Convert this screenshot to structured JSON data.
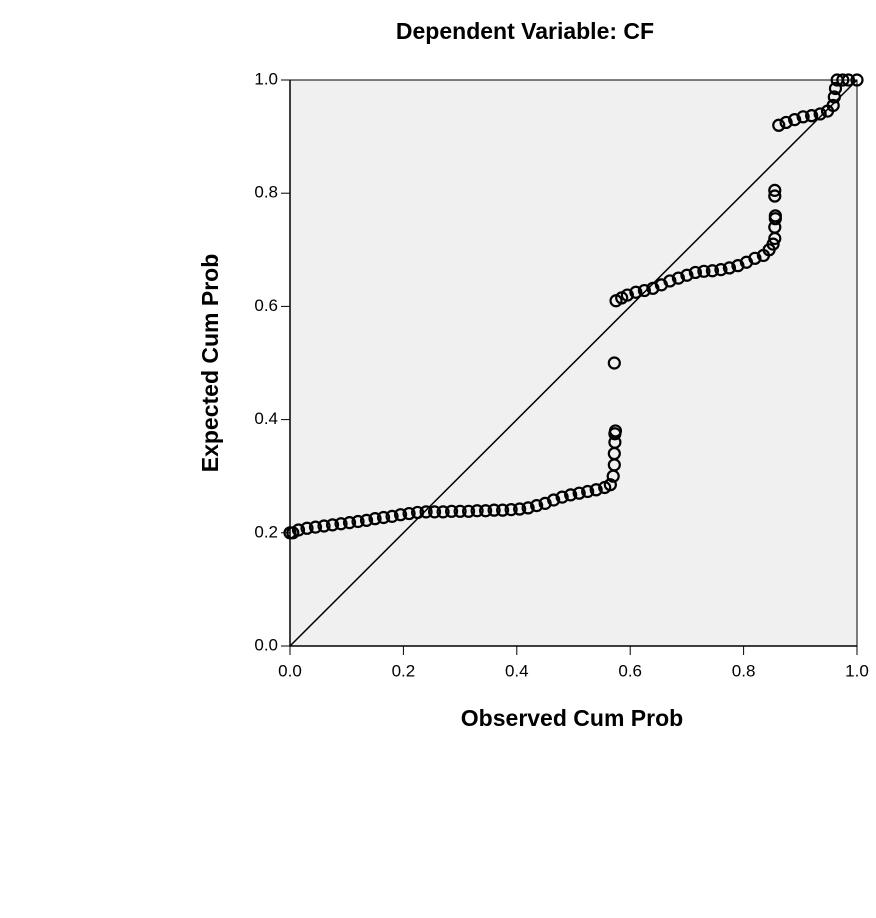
{
  "chart_data": {
    "type": "scatter",
    "title": "Dependent Variable: CF",
    "x_label": "Observed Cum Prob",
    "y_label": "Expected Cum Prob",
    "xlim": [
      0,
      1
    ],
    "ylim": [
      0,
      1
    ],
    "xticks": [
      {
        "value": 0,
        "label": "0.0"
      },
      0.2,
      0.4,
      0.6,
      0.8,
      {
        "value": 1,
        "label": "1.0"
      }
    ],
    "yticks": [
      {
        "value": 0,
        "label": "0.0"
      },
      0.2,
      0.4,
      0.6,
      0.8,
      {
        "value": 1,
        "label": "1.0"
      }
    ],
    "color": "#000000",
    "background": "#f0f0f0",
    "reference_line": true,
    "x": [
      0.0,
      0.005,
      0.015,
      0.03,
      0.045,
      0.06,
      0.075,
      0.09,
      0.105,
      0.12,
      0.135,
      0.15,
      0.165,
      0.18,
      0.195,
      0.21,
      0.225,
      0.24,
      0.255,
      0.27,
      0.285,
      0.3,
      0.315,
      0.33,
      0.345,
      0.36,
      0.375,
      0.39,
      0.405,
      0.42,
      0.435,
      0.45,
      0.465,
      0.48,
      0.495,
      0.51,
      0.525,
      0.54,
      0.555,
      0.565,
      0.57,
      0.572,
      0.572,
      0.573,
      0.573,
      0.574,
      0.572,
      0.575,
      0.585,
      0.595,
      0.61,
      0.625,
      0.64,
      0.655,
      0.67,
      0.685,
      0.7,
      0.715,
      0.73,
      0.745,
      0.76,
      0.775,
      0.79,
      0.805,
      0.82,
      0.835,
      0.845,
      0.852,
      0.855,
      0.855,
      0.856,
      0.856,
      0.855,
      0.855,
      0.862,
      0.875,
      0.89,
      0.905,
      0.92,
      0.935,
      0.948,
      0.958,
      0.96,
      0.962,
      0.965,
      0.975,
      0.985,
      1.0
    ],
    "values": [
      0.2,
      0.2,
      0.205,
      0.208,
      0.21,
      0.212,
      0.214,
      0.216,
      0.218,
      0.22,
      0.222,
      0.225,
      0.227,
      0.229,
      0.232,
      0.234,
      0.236,
      0.237,
      0.237,
      0.237,
      0.238,
      0.238,
      0.238,
      0.239,
      0.239,
      0.24,
      0.24,
      0.241,
      0.242,
      0.244,
      0.248,
      0.252,
      0.258,
      0.263,
      0.267,
      0.27,
      0.273,
      0.276,
      0.28,
      0.285,
      0.3,
      0.32,
      0.34,
      0.36,
      0.375,
      0.38,
      0.5,
      0.61,
      0.615,
      0.62,
      0.625,
      0.628,
      0.632,
      0.638,
      0.645,
      0.65,
      0.655,
      0.66,
      0.662,
      0.663,
      0.665,
      0.668,
      0.672,
      0.678,
      0.685,
      0.69,
      0.7,
      0.71,
      0.72,
      0.74,
      0.755,
      0.76,
      0.795,
      0.805,
      0.92,
      0.925,
      0.93,
      0.935,
      0.937,
      0.94,
      0.945,
      0.955,
      0.97,
      0.985,
      1.0,
      1.0,
      1.0,
      1.0
    ]
  }
}
